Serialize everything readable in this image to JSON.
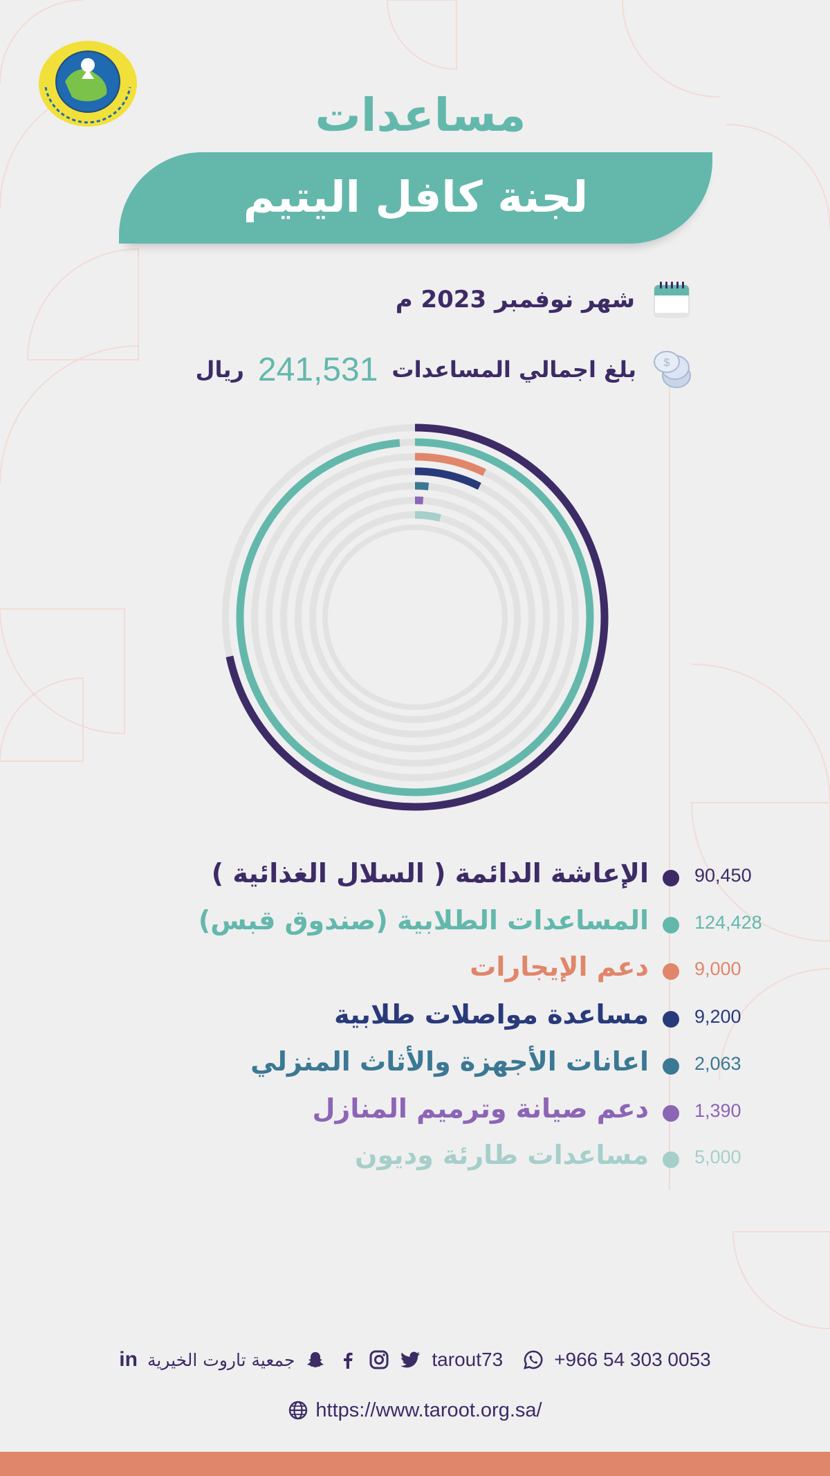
{
  "header": {
    "title_line1": "مساعدات",
    "title_line2": "لجنة كافل اليتيم",
    "logo_icon": "organization-seal-logo"
  },
  "info": {
    "month": "شهر نوفمبر 2023 م",
    "month_icon": "calendar-icon",
    "total_label": "بلغ اجمالي المساعدات",
    "total_value": "241,531",
    "total_unit": "ريال",
    "total_icon": "coins-icon"
  },
  "colors": {
    "teal": "#63b8ab",
    "purple_dark": "#3d2b66",
    "orange": "#e0866a",
    "navy": "#293a7a",
    "steel": "#3b7894",
    "violet": "#8c65b5",
    "mint": "#a6cfc9",
    "track": "#e2e2e3",
    "background": "#efeff0"
  },
  "chart_data": {
    "type": "radial_bar",
    "title": "",
    "max": 124428,
    "series": [
      {
        "name": "الإعاشة الدائمة ( السلال الغذائية )",
        "value": 90450,
        "label": "90,450",
        "color": "#3d2b66"
      },
      {
        "name": "المساعدات الطلابية (صندوق قبس)",
        "value": 124428,
        "label": "124,428",
        "color": "#63b8ab"
      },
      {
        "name": "دعم الإيجارات",
        "value": 9000,
        "label": "9,000",
        "color": "#e0866a"
      },
      {
        "name": "مساعدة مواصلات طلابية",
        "value": 9200,
        "label": "9,200",
        "color": "#293a7a"
      },
      {
        "name": "اعانات الأجهزة والأثاث المنزلي",
        "value": 2063,
        "label": "2,063",
        "color": "#3b7894"
      },
      {
        "name": "دعم صيانة وترميم المنازل",
        "value": 1390,
        "label": "1,390",
        "color": "#8c65b5"
      },
      {
        "name": "مساعدات طارئة وديون",
        "value": 5000,
        "label": "5,000",
        "color": "#a6cfc9"
      }
    ]
  },
  "footer": {
    "phone": "+966 54 303 0053",
    "handle": "tarout73",
    "org_name": "جمعية تاروت الخيرية",
    "linkedin": "in",
    "website": "https://www.taroot.org.sa/",
    "icons": [
      "whatsapp-icon",
      "twitter-icon",
      "instagram-icon",
      "facebook-icon",
      "snapchat-icon",
      "linkedin-icon",
      "globe-icon"
    ]
  }
}
